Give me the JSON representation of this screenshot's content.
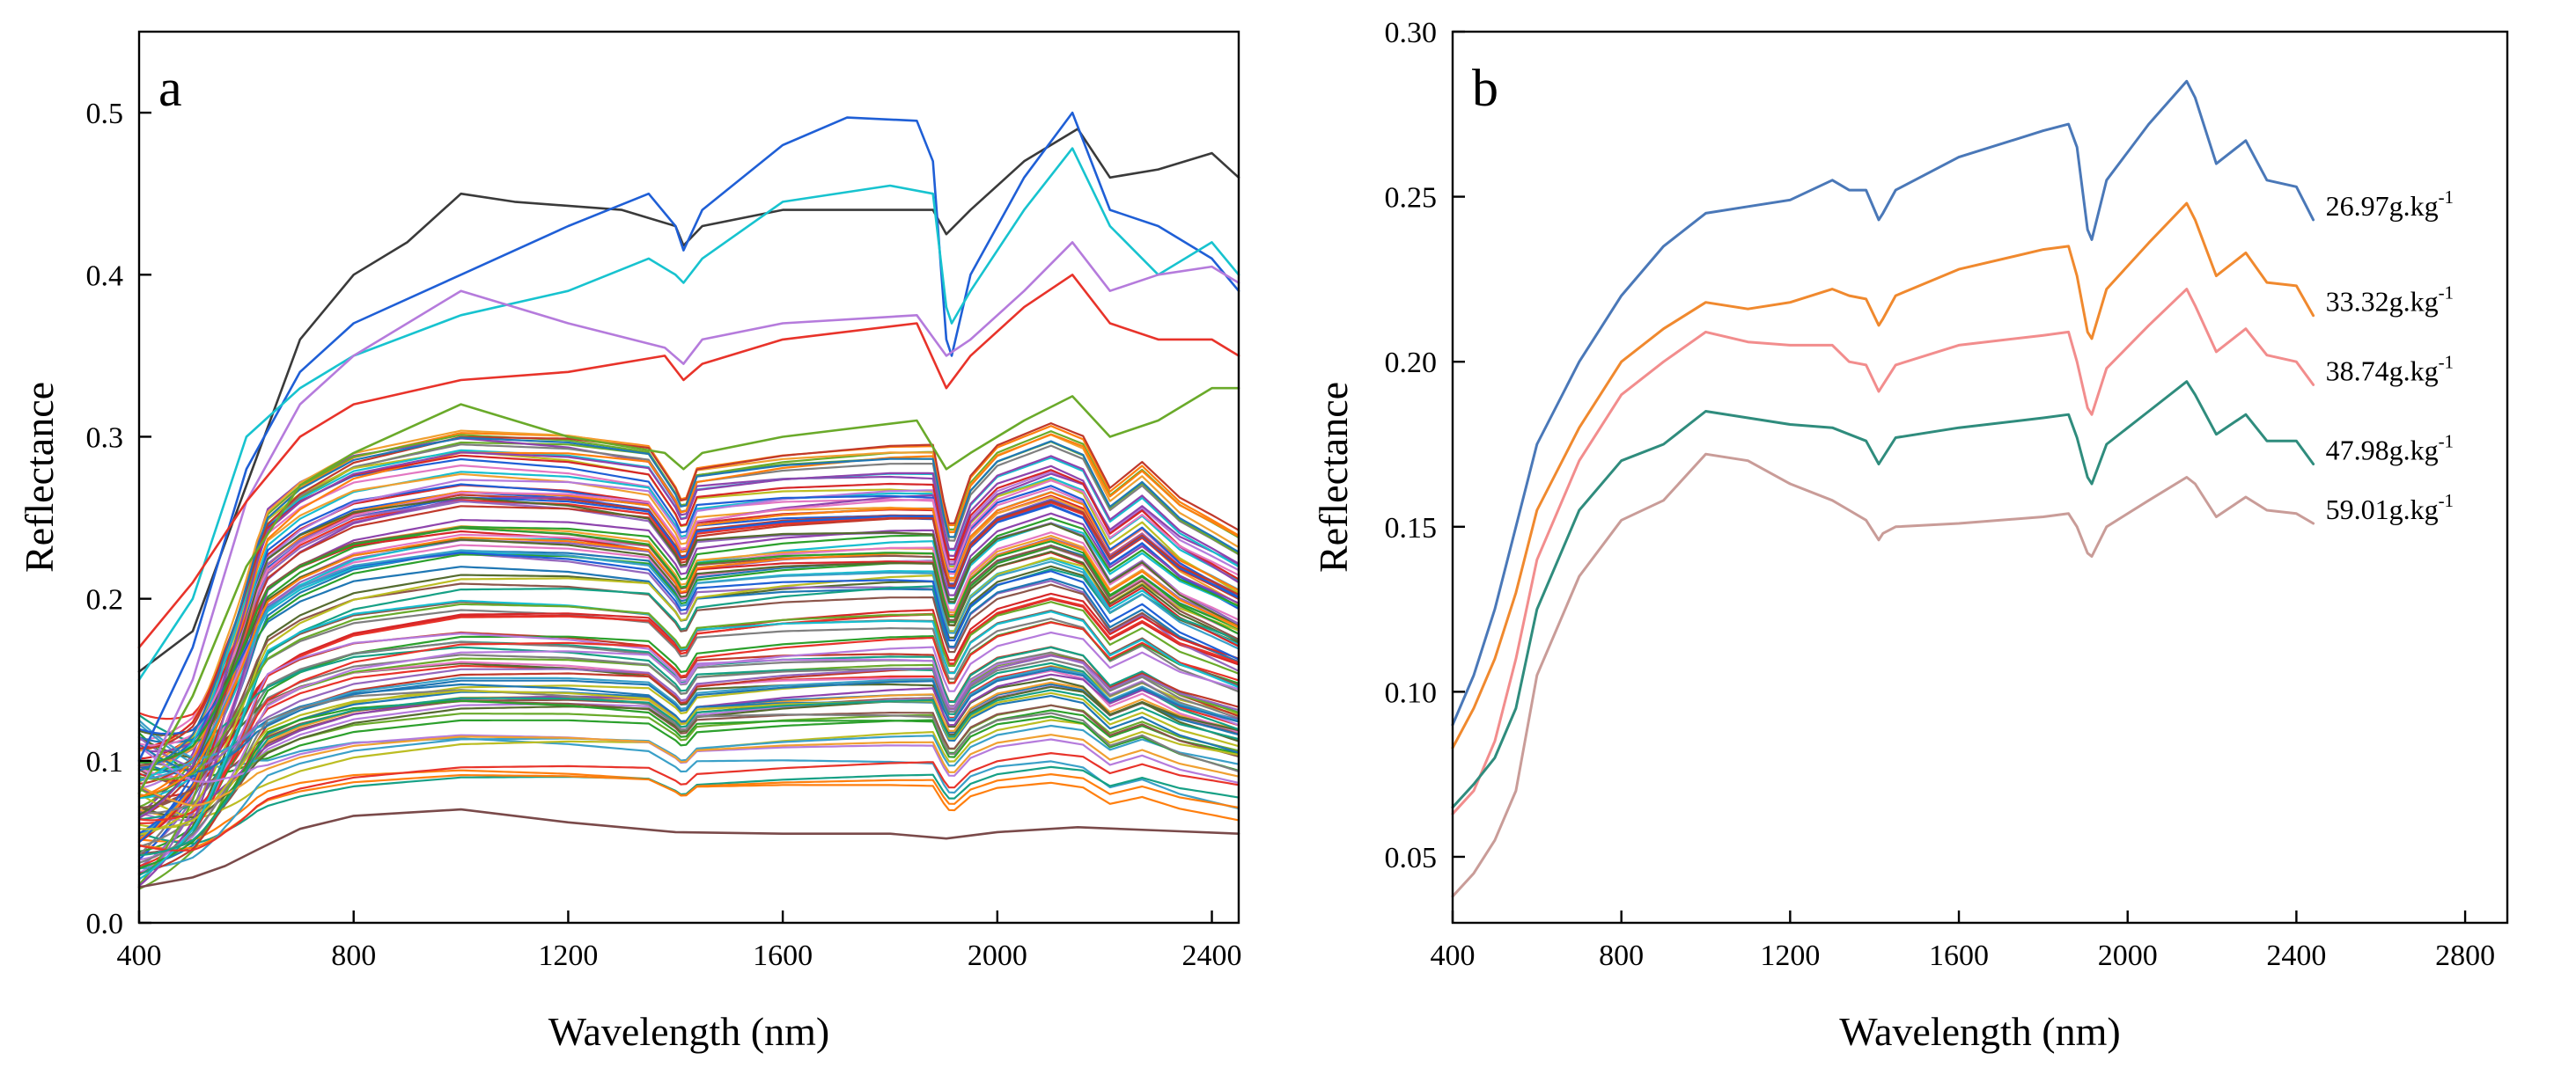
{
  "chart_data": [
    {
      "panel": "a",
      "type": "line",
      "title": "",
      "xlabel": "Wavelength (nm)",
      "ylabel": "Reflectance",
      "xlim": [
        400,
        2450
      ],
      "ylim": [
        0.0,
        0.55
      ],
      "xticks": [
        400,
        800,
        1200,
        1600,
        2000,
        2400
      ],
      "yticks": [
        0.0,
        0.1,
        0.2,
        0.3,
        0.4,
        0.5
      ],
      "ytick_labels": [
        "0.0",
        "0.1",
        "0.2",
        "0.3",
        "0.4",
        "0.5"
      ],
      "grid": false,
      "sample_count": 110,
      "baseline_spectrum": {
        "x": [
          400,
          500,
          560,
          620,
          700,
          800,
          1000,
          1200,
          1350,
          1400,
          1415,
          1440,
          1600,
          1800,
          1880,
          1905,
          1915,
          1950,
          2000,
          2100,
          2160,
          2210,
          2270,
          2340,
          2400,
          2450
        ],
        "y": [
          0.08,
          0.105,
          0.145,
          0.175,
          0.192,
          0.205,
          0.215,
          0.213,
          0.208,
          0.19,
          0.182,
          0.198,
          0.203,
          0.206,
          0.206,
          0.175,
          0.168,
          0.192,
          0.205,
          0.214,
          0.208,
          0.185,
          0.196,
          0.18,
          0.172,
          0.165
        ]
      },
      "highlighted_spectra": [
        {
          "name": "top-gray",
          "color": "#3a3a3a",
          "x": [
            400,
            500,
            600,
            700,
            800,
            900,
            1000,
            1100,
            1300,
            1400,
            1415,
            1450,
            1600,
            1800,
            1880,
            1905,
            1950,
            2050,
            2150,
            2210,
            2300,
            2400,
            2450
          ],
          "y": [
            0.155,
            0.18,
            0.27,
            0.36,
            0.4,
            0.42,
            0.45,
            0.445,
            0.44,
            0.43,
            0.418,
            0.43,
            0.44,
            0.44,
            0.44,
            0.425,
            0.44,
            0.47,
            0.49,
            0.46,
            0.465,
            0.475,
            0.46
          ]
        },
        {
          "name": "top-blue",
          "color": "#1f5fd6",
          "x": [
            400,
            500,
            600,
            700,
            800,
            1000,
            1200,
            1350,
            1400,
            1415,
            1450,
            1600,
            1720,
            1850,
            1880,
            1905,
            1915,
            1950,
            2050,
            2140,
            2210,
            2300,
            2400,
            2450
          ],
          "y": [
            0.1,
            0.17,
            0.28,
            0.34,
            0.37,
            0.4,
            0.43,
            0.45,
            0.43,
            0.415,
            0.44,
            0.48,
            0.497,
            0.495,
            0.47,
            0.36,
            0.35,
            0.4,
            0.46,
            0.5,
            0.44,
            0.43,
            0.41,
            0.39
          ]
        },
        {
          "name": "top-cyan",
          "color": "#17c3cf",
          "x": [
            400,
            500,
            600,
            700,
            800,
            1000,
            1200,
            1350,
            1400,
            1415,
            1450,
            1600,
            1800,
            1880,
            1905,
            1915,
            1950,
            2050,
            2140,
            2210,
            2300,
            2400,
            2450
          ],
          "y": [
            0.15,
            0.2,
            0.3,
            0.33,
            0.35,
            0.375,
            0.39,
            0.41,
            0.4,
            0.395,
            0.41,
            0.445,
            0.455,
            0.45,
            0.38,
            0.37,
            0.39,
            0.44,
            0.478,
            0.43,
            0.4,
            0.42,
            0.4
          ]
        },
        {
          "name": "violet",
          "color": "#b57bdc",
          "x": [
            400,
            500,
            600,
            700,
            800,
            1000,
            1200,
            1380,
            1415,
            1450,
            1600,
            1850,
            1905,
            1950,
            2050,
            2140,
            2210,
            2300,
            2400,
            2450
          ],
          "y": [
            0.08,
            0.15,
            0.26,
            0.32,
            0.35,
            0.39,
            0.37,
            0.355,
            0.345,
            0.36,
            0.37,
            0.375,
            0.35,
            0.36,
            0.39,
            0.42,
            0.39,
            0.4,
            0.405,
            0.395
          ]
        },
        {
          "name": "red",
          "color": "#e8332a",
          "x": [
            400,
            500,
            600,
            700,
            800,
            1000,
            1200,
            1380,
            1415,
            1450,
            1600,
            1850,
            1905,
            1950,
            2050,
            2140,
            2210,
            2300,
            2400,
            2450
          ],
          "y": [
            0.17,
            0.21,
            0.26,
            0.3,
            0.32,
            0.335,
            0.34,
            0.35,
            0.335,
            0.345,
            0.36,
            0.37,
            0.33,
            0.35,
            0.38,
            0.4,
            0.37,
            0.36,
            0.36,
            0.35
          ]
        },
        {
          "name": "green",
          "color": "#6aaa2a",
          "x": [
            400,
            500,
            600,
            700,
            800,
            1000,
            1200,
            1380,
            1415,
            1450,
            1600,
            1850,
            1905,
            1950,
            2050,
            2140,
            2210,
            2300,
            2400,
            2450
          ],
          "y": [
            0.08,
            0.14,
            0.22,
            0.27,
            0.29,
            0.32,
            0.3,
            0.29,
            0.28,
            0.29,
            0.3,
            0.31,
            0.28,
            0.29,
            0.31,
            0.325,
            0.3,
            0.31,
            0.33,
            0.33
          ]
        },
        {
          "name": "bottom-brown",
          "color": "#7a4a4a",
          "x": [
            400,
            500,
            560,
            620,
            700,
            800,
            1000,
            1200,
            1400,
            1600,
            1800,
            1905,
            2000,
            2150,
            2300,
            2450
          ],
          "y": [
            0.022,
            0.028,
            0.035,
            0.045,
            0.058,
            0.066,
            0.07,
            0.062,
            0.056,
            0.055,
            0.055,
            0.052,
            0.056,
            0.059,
            0.057,
            0.055
          ]
        }
      ]
    },
    {
      "panel": "b",
      "type": "line",
      "title": "",
      "xlabel": "Wavelength (nm)",
      "ylabel": "Reflectance",
      "xlim": [
        400,
        2900
      ],
      "ylim": [
        0.03,
        0.3
      ],
      "xticks": [
        400,
        800,
        1200,
        1600,
        2000,
        2400,
        2800
      ],
      "yticks": [
        0.05,
        0.1,
        0.15,
        0.2,
        0.25,
        0.3
      ],
      "ytick_labels": [
        "0.05",
        "0.10",
        "0.15",
        "0.20",
        "0.25",
        "0.30"
      ],
      "grid": false,
      "legend": "inline-right",
      "series": [
        {
          "name": "26.97g.kg-1",
          "label_main": "26.97g.kg",
          "label_sup": "-1",
          "color": "#4a78b8",
          "x": [
            400,
            450,
            500,
            550,
            600,
            700,
            800,
            900,
            1000,
            1100,
            1200,
            1300,
            1340,
            1380,
            1410,
            1420,
            1450,
            1600,
            1800,
            1860,
            1880,
            1905,
            1915,
            1950,
            2050,
            2140,
            2160,
            2210,
            2280,
            2330,
            2400,
            2440
          ],
          "y": [
            0.09,
            0.105,
            0.125,
            0.15,
            0.175,
            0.2,
            0.22,
            0.235,
            0.245,
            0.247,
            0.249,
            0.255,
            0.252,
            0.252,
            0.243,
            0.245,
            0.252,
            0.262,
            0.27,
            0.272,
            0.265,
            0.24,
            0.237,
            0.255,
            0.272,
            0.285,
            0.28,
            0.26,
            0.267,
            0.255,
            0.253,
            0.243
          ]
        },
        {
          "name": "33.32g.kg-1",
          "label_main": "33.32g.kg",
          "label_sup": "-1",
          "color": "#f0892e",
          "x": [
            400,
            450,
            500,
            550,
            600,
            700,
            800,
            900,
            1000,
            1100,
            1200,
            1300,
            1340,
            1380,
            1410,
            1420,
            1450,
            1600,
            1800,
            1860,
            1880,
            1905,
            1915,
            1950,
            2050,
            2140,
            2160,
            2210,
            2280,
            2330,
            2400,
            2440
          ],
          "y": [
            0.083,
            0.095,
            0.11,
            0.13,
            0.155,
            0.18,
            0.2,
            0.21,
            0.218,
            0.216,
            0.218,
            0.222,
            0.22,
            0.219,
            0.211,
            0.213,
            0.22,
            0.228,
            0.234,
            0.235,
            0.226,
            0.209,
            0.207,
            0.222,
            0.236,
            0.248,
            0.243,
            0.226,
            0.233,
            0.224,
            0.223,
            0.214
          ]
        },
        {
          "name": "38.74g.kg-1",
          "label_main": "38.74g.kg",
          "label_sup": "-1",
          "color": "#f28d8d",
          "x": [
            400,
            450,
            500,
            550,
            600,
            700,
            800,
            900,
            1000,
            1100,
            1200,
            1300,
            1340,
            1380,
            1410,
            1420,
            1450,
            1600,
            1800,
            1860,
            1880,
            1905,
            1915,
            1950,
            2050,
            2140,
            2160,
            2210,
            2280,
            2330,
            2400,
            2440
          ],
          "y": [
            0.063,
            0.07,
            0.085,
            0.11,
            0.14,
            0.17,
            0.19,
            0.2,
            0.209,
            0.206,
            0.205,
            0.205,
            0.2,
            0.199,
            0.191,
            0.193,
            0.199,
            0.205,
            0.208,
            0.209,
            0.2,
            0.186,
            0.184,
            0.198,
            0.211,
            0.222,
            0.217,
            0.203,
            0.21,
            0.202,
            0.2,
            0.193
          ]
        },
        {
          "name": "47.98g.kg-1",
          "label_main": "47.98g.kg",
          "label_sup": "-1",
          "color": "#2f8c7d",
          "x": [
            400,
            450,
            500,
            550,
            600,
            700,
            800,
            900,
            1000,
            1100,
            1200,
            1300,
            1340,
            1380,
            1410,
            1420,
            1450,
            1600,
            1800,
            1860,
            1880,
            1905,
            1915,
            1950,
            2050,
            2140,
            2160,
            2210,
            2280,
            2330,
            2400,
            2440
          ],
          "y": [
            0.065,
            0.072,
            0.08,
            0.095,
            0.125,
            0.155,
            0.17,
            0.175,
            0.185,
            0.183,
            0.181,
            0.18,
            0.178,
            0.176,
            0.169,
            0.171,
            0.177,
            0.18,
            0.183,
            0.184,
            0.177,
            0.165,
            0.163,
            0.175,
            0.185,
            0.194,
            0.19,
            0.178,
            0.184,
            0.176,
            0.176,
            0.169
          ]
        },
        {
          "name": "59.01g.kg-1",
          "label_main": "59.01g.kg",
          "label_sup": "-1",
          "color": "#c99c98",
          "x": [
            400,
            450,
            500,
            550,
            600,
            700,
            800,
            900,
            1000,
            1100,
            1200,
            1300,
            1340,
            1380,
            1410,
            1420,
            1450,
            1600,
            1800,
            1860,
            1880,
            1905,
            1915,
            1950,
            2050,
            2140,
            2160,
            2210,
            2280,
            2330,
            2400,
            2440
          ],
          "y": [
            0.038,
            0.045,
            0.055,
            0.07,
            0.105,
            0.135,
            0.152,
            0.158,
            0.172,
            0.17,
            0.163,
            0.158,
            0.155,
            0.152,
            0.146,
            0.148,
            0.15,
            0.151,
            0.153,
            0.154,
            0.15,
            0.142,
            0.141,
            0.15,
            0.158,
            0.165,
            0.163,
            0.153,
            0.159,
            0.155,
            0.154,
            0.151
          ]
        }
      ]
    }
  ]
}
